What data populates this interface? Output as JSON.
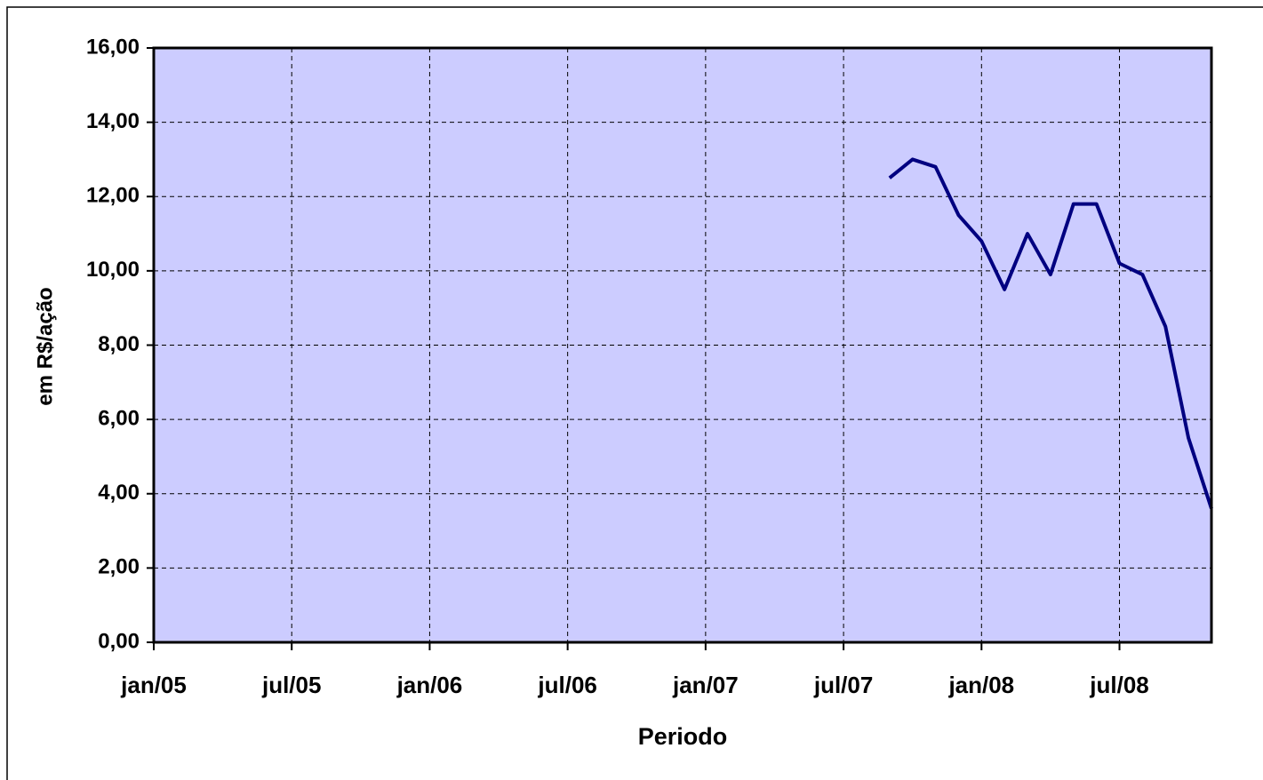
{
  "chart_data": {
    "type": "line",
    "y_label": "em R$/ação",
    "x_label": "Periodo",
    "x": [
      "2007-09",
      "2007-10",
      "2007-11",
      "2007-12",
      "2008-01",
      "2008-02",
      "2008-03",
      "2008-04",
      "2008-05",
      "2008-06",
      "2008-07",
      "2008-08",
      "2008-09",
      "2008-10",
      "2008-11"
    ],
    "series": [
      {
        "color": "#000080",
        "values": [
          12.5,
          13.0,
          12.8,
          11.5,
          10.8,
          9.5,
          11.0,
          9.9,
          11.8,
          11.8,
          10.2,
          9.9,
          8.5,
          5.5,
          3.6
        ]
      }
    ],
    "xlim": [
      "2005-01",
      "2008-11"
    ],
    "xticks": [
      {
        "value": "2005-01",
        "label": "jan/05"
      },
      {
        "value": "2005-07",
        "label": "jul/05"
      },
      {
        "value": "2006-01",
        "label": "jan/06"
      },
      {
        "value": "2006-07",
        "label": "jul/06"
      },
      {
        "value": "2007-01",
        "label": "jan/07"
      },
      {
        "value": "2007-07",
        "label": "jul/07"
      },
      {
        "value": "2008-01",
        "label": "jan/08"
      },
      {
        "value": "2008-07",
        "label": "jul/08"
      }
    ],
    "ylim": [
      0,
      16
    ],
    "yticks": [
      {
        "value": 0,
        "label": "0,00"
      },
      {
        "value": 2,
        "label": "2,00"
      },
      {
        "value": 4,
        "label": "4,00"
      },
      {
        "value": 6,
        "label": "6,00"
      },
      {
        "value": 8,
        "label": "8,00"
      },
      {
        "value": 10,
        "label": "10,00"
      },
      {
        "value": 12,
        "label": "12,00"
      },
      {
        "value": 14,
        "label": "14,00"
      },
      {
        "value": 16,
        "label": "16,00"
      }
    ],
    "grid": true,
    "plot_background": "#ccccff"
  }
}
